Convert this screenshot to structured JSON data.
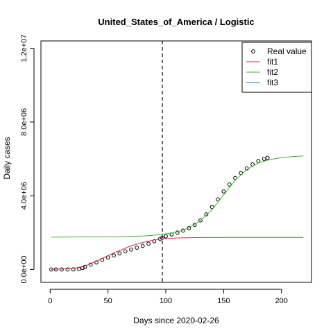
{
  "chart_data": {
    "type": "line",
    "title": "United_States_of_America / Logistic",
    "xlabel": "Days since 2020-02-26",
    "ylabel": "Daily cases",
    "xlim": [
      -8,
      226
    ],
    "ylim": [
      -700000,
      12400000
    ],
    "x_ticks": [
      0,
      50,
      100,
      150,
      200
    ],
    "x_tick_labels": [
      "0",
      "50",
      "100",
      "150",
      "200"
    ],
    "y_ticks": [
      0,
      4000000,
      8000000,
      12000000
    ],
    "y_tick_labels": [
      "0.0e+00",
      "4.0e+06",
      "8.0e+06",
      "1.2e+07"
    ],
    "vline_x": 97,
    "legend_position": "top-right",
    "series": [
      {
        "name": "Real value",
        "kind": "points",
        "color": "#000000",
        "points": [
          [
            1,
            0
          ],
          [
            5,
            0
          ],
          [
            10,
            0
          ],
          [
            15,
            0
          ],
          [
            20,
            5000
          ],
          [
            25,
            20000
          ],
          [
            28,
            80000
          ],
          [
            30,
            140000
          ],
          [
            35,
            260000
          ],
          [
            40,
            380000
          ],
          [
            45,
            520000
          ],
          [
            50,
            650000
          ],
          [
            55,
            760000
          ],
          [
            60,
            870000
          ],
          [
            65,
            980000
          ],
          [
            70,
            1080000
          ],
          [
            75,
            1180000
          ],
          [
            80,
            1280000
          ],
          [
            85,
            1400000
          ],
          [
            90,
            1530000
          ],
          [
            95,
            1650000
          ],
          [
            97,
            1720000
          ],
          [
            100,
            1800000
          ],
          [
            105,
            1900000
          ],
          [
            110,
            2000000
          ],
          [
            115,
            2110000
          ],
          [
            120,
            2240000
          ],
          [
            125,
            2420000
          ],
          [
            130,
            2660000
          ],
          [
            135,
            2990000
          ],
          [
            140,
            3390000
          ],
          [
            145,
            3800000
          ],
          [
            150,
            4230000
          ],
          [
            155,
            4610000
          ],
          [
            160,
            4960000
          ],
          [
            165,
            5230000
          ],
          [
            170,
            5480000
          ],
          [
            175,
            5700000
          ],
          [
            180,
            5880000
          ],
          [
            185,
            6000000
          ],
          [
            188,
            6060000
          ]
        ]
      },
      {
        "name": "fit1",
        "kind": "line",
        "color": "#c83250",
        "points": [
          [
            1,
            10000
          ],
          [
            10,
            25000
          ],
          [
            20,
            60000
          ],
          [
            30,
            180000
          ],
          [
            40,
            450000
          ],
          [
            50,
            750000
          ],
          [
            60,
            1030000
          ],
          [
            70,
            1280000
          ],
          [
            80,
            1470000
          ],
          [
            90,
            1600000
          ],
          [
            97,
            1660000
          ],
          [
            110,
            1710000
          ],
          [
            130,
            1730000
          ],
          [
            150,
            1735000
          ],
          [
            180,
            1740000
          ],
          [
            219,
            1740000
          ]
        ]
      },
      {
        "name": "fit2",
        "kind": "line",
        "color": "#40b030",
        "points": [
          [
            1,
            1760000
          ],
          [
            40,
            1765000
          ],
          [
            60,
            1775000
          ],
          [
            80,
            1810000
          ],
          [
            90,
            1860000
          ],
          [
            100,
            1930000
          ],
          [
            110,
            2040000
          ],
          [
            120,
            2260000
          ],
          [
            130,
            2650000
          ],
          [
            140,
            3250000
          ],
          [
            150,
            4040000
          ],
          [
            160,
            4840000
          ],
          [
            170,
            5420000
          ],
          [
            180,
            5780000
          ],
          [
            190,
            5960000
          ],
          [
            200,
            6070000
          ],
          [
            210,
            6130000
          ],
          [
            219,
            6160000
          ]
        ]
      },
      {
        "name": "fit3",
        "kind": "line",
        "color": "#1f78c8",
        "points": []
      }
    ]
  }
}
